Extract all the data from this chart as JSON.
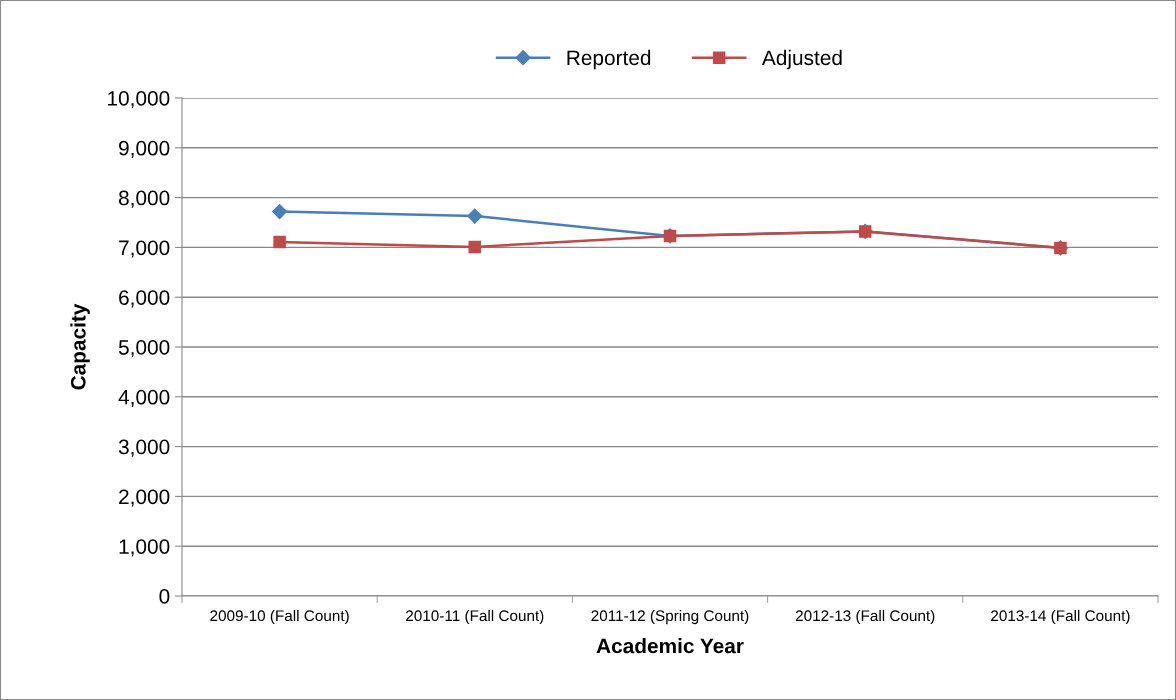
{
  "chart_data": {
    "type": "line",
    "xlabel": "Academic Year",
    "ylabel": "Capacity",
    "categories": [
      "2009-10 (Fall Count)",
      "2010-11 (Fall Count)",
      "2011-12 (Spring Count)",
      "2012-13 (Fall Count)",
      "2013-14 (Fall Count)"
    ],
    "series": [
      {
        "name": "Reported",
        "color": "#4a7ebb",
        "marker": "diamond",
        "values": [
          7720,
          7630,
          7230,
          7320,
          6990
        ]
      },
      {
        "name": "Adjusted",
        "color": "#be4b48",
        "marker": "square",
        "values": [
          7110,
          7010,
          7230,
          7320,
          6990
        ]
      }
    ],
    "ylim": [
      0,
      10000
    ],
    "yticks": [
      0,
      {
        "value": 1000,
        "label": "1,000"
      },
      {
        "value": 2000,
        "label": "2,000"
      },
      {
        "value": 3000,
        "label": "3,000"
      },
      {
        "value": 4000,
        "label": "4,000"
      },
      {
        "value": 5000,
        "label": "5,000"
      },
      {
        "value": 6000,
        "label": "6,000"
      },
      {
        "value": 7000,
        "label": "7,000"
      },
      {
        "value": 8000,
        "label": "8,000"
      },
      {
        "value": 9000,
        "label": "9,000"
      },
      {
        "value": 10000,
        "label": "10,000"
      }
    ],
    "grid": "y",
    "legend": "top",
    "line_style": "solid"
  }
}
